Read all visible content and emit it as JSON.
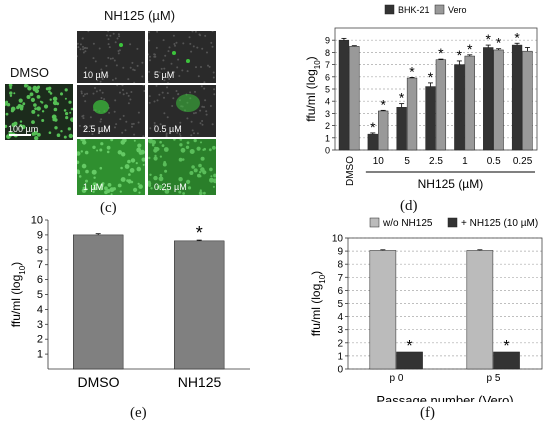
{
  "panel_c": {
    "title": "NH125 (µM)",
    "dmso_label": "DMSO",
    "scale_label": "100 µm",
    "tiles": [
      "10 µM",
      "5 µM",
      "2.5 µM",
      "0.5 µM",
      "1 µM",
      "0.25 µM"
    ],
    "letter": "(c)",
    "colors": {
      "background": "#1a1a1a",
      "fluorescence": "#3cc43c"
    }
  },
  "panel_d_letter": "(d)",
  "panel_e_letter": "(e)",
  "panel_f_letter": "(f)",
  "chart_data": [
    {
      "id": "d",
      "type": "bar",
      "ylabel": "ffu/ml (log10)",
      "ylim": [
        0,
        10
      ],
      "yticks": [
        0,
        1,
        2,
        3,
        4,
        5,
        6,
        7,
        8,
        9
      ],
      "categories": [
        "DMSO",
        "10",
        "5",
        "2.5",
        "1",
        "0.5",
        "0.25"
      ],
      "xgroup_label": "NH125 (µM)",
      "grid": true,
      "legend_position": "top",
      "series": [
        {
          "name": "BHK-21",
          "color": "#333333",
          "values": [
            9.0,
            1.3,
            3.5,
            5.2,
            7.0,
            8.4,
            8.6
          ],
          "errors": [
            0.15,
            0.1,
            0.3,
            0.3,
            0.3,
            0.2,
            0.15
          ],
          "significant": [
            false,
            true,
            true,
            true,
            true,
            true,
            true
          ]
        },
        {
          "name": "Vero",
          "color": "#999999",
          "values": [
            8.5,
            3.2,
            5.9,
            7.4,
            7.7,
            8.2,
            8.1
          ],
          "errors": [
            0.05,
            0.05,
            0.05,
            0.05,
            0.1,
            0.1,
            0.3
          ],
          "significant": [
            false,
            true,
            true,
            true,
            true,
            true,
            false
          ]
        }
      ],
      "star": "*"
    },
    {
      "id": "e",
      "type": "bar",
      "ylabel": "ffu/ml (log10)",
      "ylim": [
        0,
        10
      ],
      "yticks": [
        1,
        2,
        3,
        4,
        5,
        6,
        7,
        8,
        9,
        10
      ],
      "categories": [
        "DMSO",
        "NH125"
      ],
      "grid": false,
      "series": [
        {
          "name": "",
          "color": "#808080",
          "values": [
            9.0,
            8.6
          ],
          "errors": [
            0.08,
            0.05
          ],
          "significant": [
            false,
            true
          ]
        }
      ],
      "star": "*"
    },
    {
      "id": "f",
      "type": "bar",
      "ylabel": "ffu/ml (log10)",
      "xlabel": "Passage number (Vero)",
      "ylim": [
        0,
        10
      ],
      "yticks": [
        0,
        1,
        2,
        3,
        4,
        5,
        6,
        7,
        8,
        9,
        10
      ],
      "categories": [
        "p 0",
        "p 5"
      ],
      "grid": true,
      "legend_position": "top",
      "series": [
        {
          "name": "w/o NH125",
          "color": "#bbbbbb",
          "values": [
            9.05,
            9.05
          ],
          "errors": [
            0.05,
            0.05
          ],
          "significant": [
            false,
            false
          ]
        },
        {
          "name": "+ NH125 (10 µM)",
          "color": "#333333",
          "values": [
            1.3,
            1.3
          ],
          "errors": [
            0,
            0
          ],
          "significant": [
            true,
            true
          ]
        }
      ],
      "star": "*"
    }
  ]
}
